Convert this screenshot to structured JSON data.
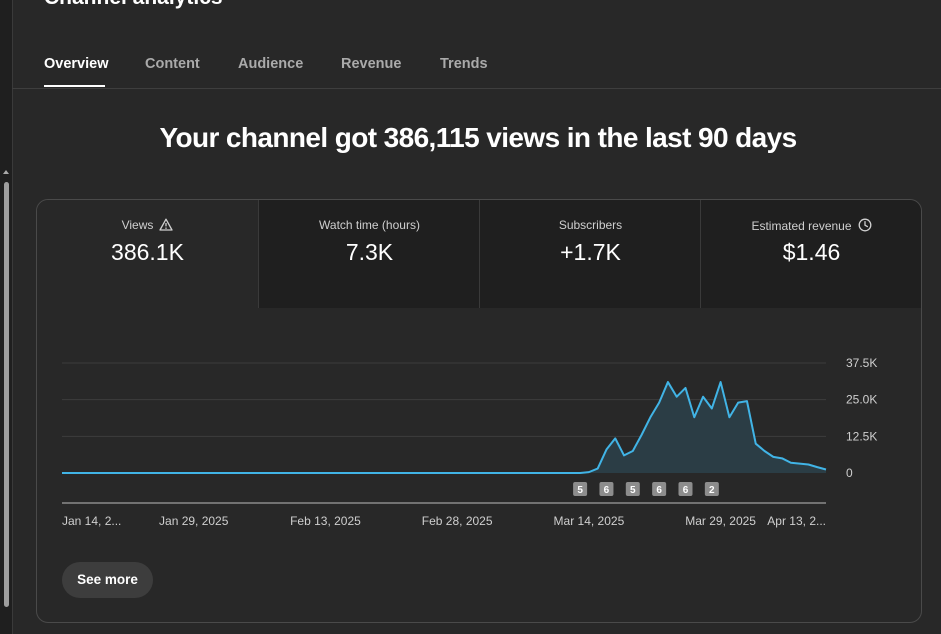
{
  "page": {
    "title": "Channel analytics",
    "tabs": [
      {
        "label": "Overview",
        "active": true
      },
      {
        "label": "Content",
        "active": false
      },
      {
        "label": "Audience",
        "active": false
      },
      {
        "label": "Revenue",
        "active": false
      },
      {
        "label": "Trends",
        "active": false
      }
    ],
    "headline": "Your channel got 386,115 views in the last 90 days"
  },
  "metrics": [
    {
      "label": "Views",
      "value": "386.1K",
      "icon": "warning-icon"
    },
    {
      "label": "Watch time (hours)",
      "value": "7.3K"
    },
    {
      "label": "Subscribers",
      "value": "+1.7K"
    },
    {
      "label": "Estimated revenue",
      "value": "$1.46",
      "icon": "clock-icon"
    }
  ],
  "chart_data": {
    "type": "area",
    "series": [
      {
        "values": [
          0,
          0,
          0,
          0,
          0,
          0,
          0,
          0,
          0,
          0,
          0,
          0,
          0,
          0,
          0,
          0,
          0,
          0,
          0,
          0,
          0,
          0,
          0,
          0,
          0,
          0,
          0,
          0,
          0,
          0,
          0,
          0,
          0,
          0,
          0,
          0,
          0,
          0,
          0,
          0,
          0,
          0,
          0,
          0,
          0,
          0,
          0,
          0,
          0,
          0,
          0,
          0,
          0,
          0,
          0,
          0,
          0,
          0,
          0,
          0,
          300,
          1500,
          8000,
          11800,
          6000,
          7500,
          13000,
          19000,
          24000,
          31000,
          26000,
          29000,
          19000,
          26000,
          22000,
          31000,
          19000,
          24000,
          24500,
          10000,
          7500,
          5500,
          5000,
          3500,
          3200,
          2900,
          2000,
          1200
        ]
      }
    ],
    "x_ticks": [
      "Jan 14, 2...",
      "Jan 29, 2025",
      "Feb 13, 2025",
      "Feb 28, 2025",
      "Mar 14, 2025",
      "Mar 29, 2025",
      "Apr 13, 2..."
    ],
    "x_tick_index": [
      0,
      15,
      30,
      45,
      60,
      75,
      87
    ],
    "y_ticks": [
      "37.5K",
      "25.0K",
      "12.5K",
      "0"
    ],
    "ylim": [
      0,
      37500
    ],
    "grid": true,
    "markers": [
      {
        "label": "5",
        "index": 59
      },
      {
        "label": "6",
        "index": 62
      },
      {
        "label": "5",
        "index": 65
      },
      {
        "label": "6",
        "index": 68
      },
      {
        "label": "6",
        "index": 71
      },
      {
        "label": "2",
        "index": 74
      }
    ],
    "colors": {
      "line": "#41b4e6",
      "fill": "#2b3d45",
      "grid": "#3d3d3d",
      "axis": "#8a8a8a",
      "marker_bg": "#8d8d8d"
    }
  },
  "actions": {
    "see_more": "See more"
  }
}
